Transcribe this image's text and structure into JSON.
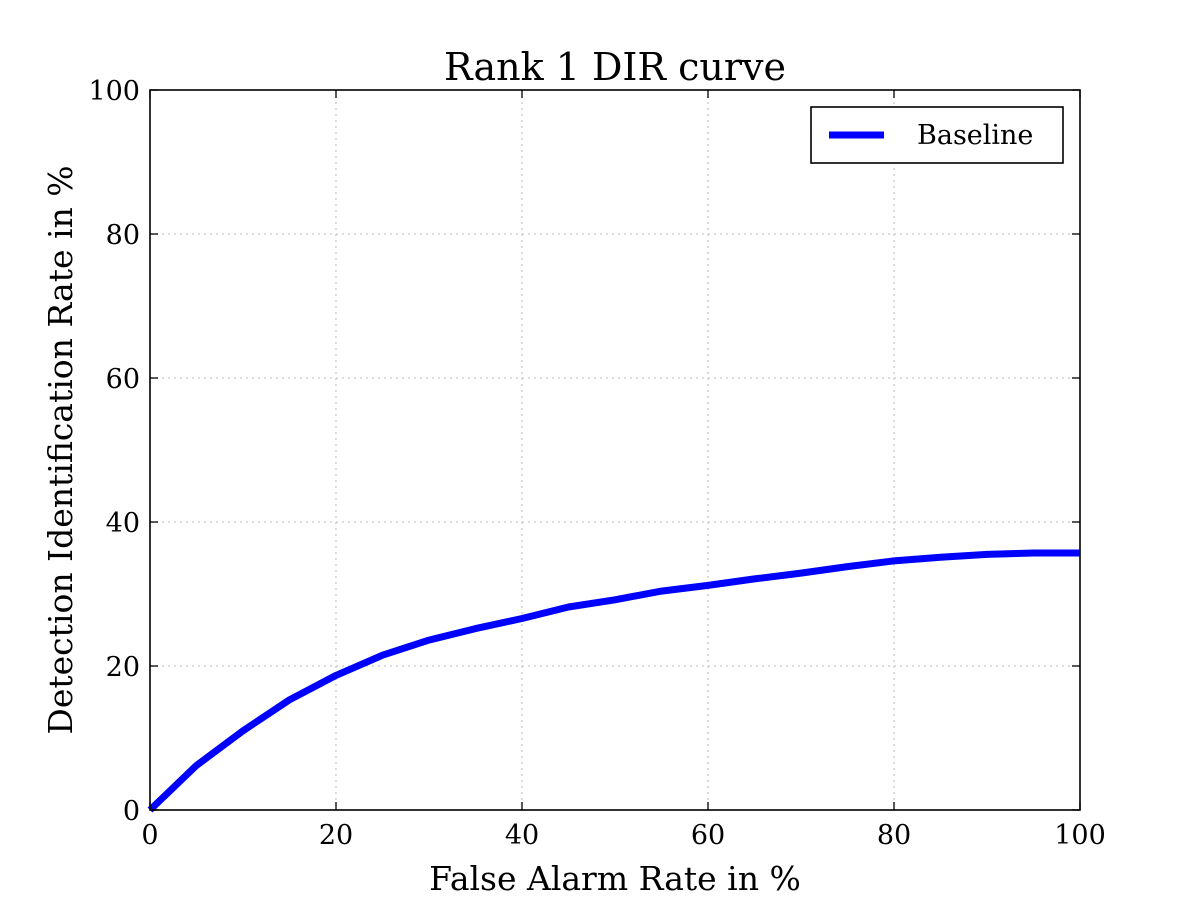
{
  "chart_data": {
    "type": "line",
    "title": "Rank 1 DIR curve",
    "xlabel": "False Alarm Rate in %",
    "ylabel": "Detection Identification Rate in %",
    "xlim": [
      0,
      100
    ],
    "ylim": [
      0,
      100
    ],
    "xticks": [
      0,
      20,
      40,
      60,
      80,
      100
    ],
    "yticks": [
      0,
      20,
      40,
      60,
      80,
      100
    ],
    "xtick_labels": [
      "0",
      "20",
      "40",
      "60",
      "80",
      "100"
    ],
    "ytick_labels": [
      "0",
      "20",
      "40",
      "60",
      "80",
      "100"
    ],
    "grid": true,
    "legend": {
      "position": "top-right",
      "entries": [
        "Baseline"
      ]
    },
    "series": [
      {
        "name": "Baseline",
        "color": "#0000ff",
        "x": [
          0,
          5,
          10,
          15,
          20,
          25,
          30,
          35,
          40,
          45,
          50,
          55,
          60,
          65,
          70,
          75,
          80,
          85,
          90,
          95,
          100
        ],
        "y": [
          0,
          6.2,
          11.0,
          15.3,
          18.7,
          21.5,
          23.6,
          25.2,
          26.6,
          28.2,
          29.2,
          30.4,
          31.2,
          32.1,
          32.9,
          33.8,
          34.6,
          35.1,
          35.5,
          35.7,
          35.7
        ]
      }
    ]
  }
}
